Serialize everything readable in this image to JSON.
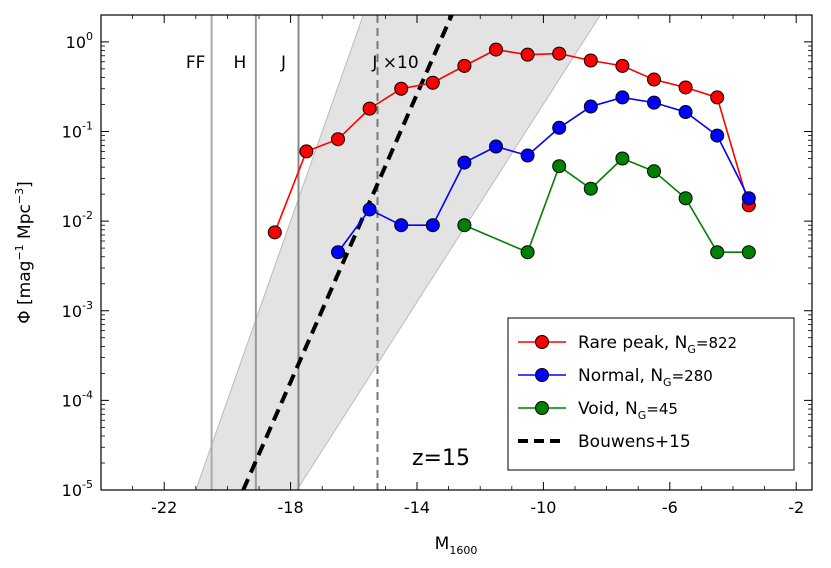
{
  "chart_data": {
    "type": "line",
    "xlabel_main": "M",
    "xlabel_sub": "1600",
    "ylabel_parts": [
      "Φ [mag",
      "−1",
      " Mpc",
      "−3",
      "]"
    ],
    "xlim": [
      -24,
      -1.5
    ],
    "ylim_log10": [
      -5,
      0.3
    ],
    "x_ticks": [
      -22,
      -18,
      -14,
      -10,
      -6,
      -2
    ],
    "x_tick_labels": [
      "-22",
      "-18",
      "-14",
      "-10",
      "-6",
      "-2"
    ],
    "y_ticks_log10": [
      -5,
      -4,
      -3,
      -2,
      -1,
      0
    ],
    "y_tick_labels": [
      {
        "base": "10",
        "exp": "-5"
      },
      {
        "base": "10",
        "exp": "-4"
      },
      {
        "base": "10",
        "exp": "-3"
      },
      {
        "base": "10",
        "exp": "-2"
      },
      {
        "base": "10",
        "exp": "-1"
      },
      {
        "base": "10",
        "exp": "0"
      }
    ],
    "series": [
      {
        "name": "Rare peak",
        "label_text": "Rare peak, N",
        "label_sub": "G",
        "label_eq": "=822",
        "color": "#ff0000",
        "points": [
          [
            -18.5,
            0.0075
          ],
          [
            -17.5,
            0.06
          ],
          [
            -16.5,
            0.082
          ],
          [
            -15.5,
            0.18
          ],
          [
            -14.5,
            0.3
          ],
          [
            -13.5,
            0.35
          ],
          [
            -12.5,
            0.54
          ],
          [
            -11.5,
            0.82
          ],
          [
            -10.5,
            0.72
          ],
          [
            -9.5,
            0.74
          ],
          [
            -8.5,
            0.62
          ],
          [
            -7.5,
            0.54
          ],
          [
            -6.5,
            0.38
          ],
          [
            -5.5,
            0.31
          ],
          [
            -4.5,
            0.24
          ],
          [
            -3.5,
            0.015
          ]
        ]
      },
      {
        "name": "Normal",
        "label_text": "Normal, N",
        "label_sub": "G",
        "label_eq": "=280",
        "color": "#0000ff",
        "points": [
          [
            -16.5,
            0.0045
          ],
          [
            -15.5,
            0.0135
          ],
          [
            -14.5,
            0.009
          ],
          [
            -13.5,
            0.009
          ],
          [
            -12.5,
            0.045
          ],
          [
            -11.5,
            0.068
          ],
          [
            -10.5,
            0.054
          ],
          [
            -9.5,
            0.11
          ],
          [
            -8.5,
            0.19
          ],
          [
            -7.5,
            0.24
          ],
          [
            -6.5,
            0.21
          ],
          [
            -5.5,
            0.165
          ],
          [
            -4.5,
            0.09
          ],
          [
            -3.5,
            0.018
          ]
        ]
      },
      {
        "name": "Void",
        "label_text": "Void, N",
        "label_sub": "G",
        "label_eq": "=45",
        "color": "#008000",
        "points": [
          [
            -12.5,
            0.009
          ],
          [
            -10.5,
            0.0045
          ],
          [
            -9.5,
            0.041
          ],
          [
            -8.5,
            0.023
          ],
          [
            -7.5,
            0.05
          ],
          [
            -6.5,
            0.036
          ],
          [
            -5.5,
            0.018
          ],
          [
            -4.5,
            0.0045
          ],
          [
            -3.5,
            0.0045
          ]
        ]
      }
    ],
    "bouwens": {
      "name": "Bouwens+15",
      "color": "#000000",
      "points": [
        [
          -19.5,
          1e-05
        ],
        [
          -12.9,
          2.0
        ]
      ]
    },
    "band": {
      "color": "#d9d9d9",
      "points_log10": [
        [
          -21.0,
          -5
        ],
        [
          -15.7,
          0.3
        ],
        [
          -8.2,
          0.3
        ],
        [
          -17.8,
          -5
        ]
      ]
    },
    "vertical_lines": [
      {
        "label": "FF",
        "x": -20.5,
        "color": "#aaaaaa",
        "style": "solid"
      },
      {
        "label": "H",
        "x": -19.1,
        "color": "#999999",
        "style": "solid"
      },
      {
        "label": "J",
        "x": -17.75,
        "color": "#888888",
        "style": "solid"
      },
      {
        "label": "J ×10",
        "x": -15.25,
        "color": "#777777",
        "style": "dashed"
      }
    ],
    "annotation": "z=15",
    "legend_position": "lower-right"
  },
  "style": {
    "axis_color": "#000000",
    "background": "#ffffff",
    "legend_border": "#000000"
  }
}
